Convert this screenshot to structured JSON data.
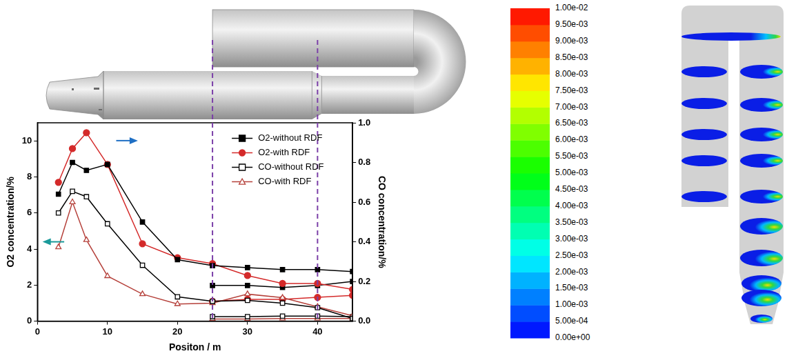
{
  "chart_data": {
    "type": "line",
    "x": [
      3,
      5,
      7,
      10,
      15,
      20,
      25,
      30,
      35,
      40,
      45
    ],
    "xlabel": "Positon / m",
    "ylabel": "O2 concentration/%",
    "y2label": "CO concentration/%",
    "xlim": [
      0,
      45
    ],
    "xticks": [
      0,
      10,
      20,
      30,
      40
    ],
    "ylim": [
      0,
      11
    ],
    "yticks": [
      0,
      2,
      4,
      6,
      8,
      10
    ],
    "y2lim": [
      0,
      1
    ],
    "y2ticks": [
      {
        "value": 0,
        "label": "0.0"
      },
      0.2,
      0.4,
      0.6,
      0.8,
      {
        "value": 1,
        "label": "1.0"
      }
    ],
    "grid": false,
    "legend": "upper right",
    "reference_lines_x": [
      25,
      40
    ],
    "series": [
      {
        "name": "O2-without RDF",
        "color": "#000000",
        "marker": "square",
        "line_style": "solid",
        "axis": "y2",
        "values": [
          0.64,
          0.8,
          0.76,
          0.79,
          0.5,
          0.31,
          0.28,
          0.27,
          0.26,
          0.26,
          0.25
        ]
      },
      {
        "name": "O2-with RDF",
        "color": "#d42a2a",
        "marker": "circle",
        "line_style": "solid",
        "axis": "y2",
        "values": [
          0.7,
          0.87,
          0.95,
          0.79,
          0.39,
          0.32,
          0.29,
          0.23,
          0.19,
          0.19,
          0.16
        ]
      },
      {
        "name": "CO-without RDF",
        "color": "#000000",
        "marker": "open_square",
        "line_style": "solid",
        "axis": "y",
        "values": [
          6.0,
          7.2,
          6.9,
          5.4,
          3.1,
          1.35,
          1.1,
          1.15,
          1.0,
          0.75,
          0.15
        ]
      },
      {
        "name": "CO-with RDF",
        "color": "#b5403a",
        "marker": "open_triangle",
        "line_style": "solid",
        "axis": "y",
        "values": [
          4.1,
          6.6,
          4.5,
          2.5,
          1.5,
          0.95,
          1.0,
          1.5,
          1.3,
          0.8,
          0.3
        ]
      },
      {
        "name": "O2-without RDF",
        "color": "#000000",
        "marker": "square",
        "line_style": "solid",
        "axis": "y2",
        "values": [
          null,
          null,
          null,
          null,
          null,
          null,
          0.18,
          0.18,
          0.17,
          0.18,
          0.2
        ]
      },
      {
        "name": "O2-with RDF",
        "color": "#d42a2a",
        "marker": "circle",
        "line_style": "solid",
        "axis": "y2",
        "values": [
          null,
          null,
          null,
          null,
          null,
          null,
          0.1,
          0.11,
          0.11,
          0.12,
          0.13
        ]
      },
      {
        "name": "CO-without RDF",
        "color": "#000000",
        "marker": "open_square",
        "line_style": "solid",
        "axis": "y",
        "values": [
          null,
          null,
          null,
          null,
          null,
          null,
          0.25,
          0.25,
          0.28,
          0.28,
          0.25
        ]
      },
      {
        "name": "CO-with RDF",
        "color": "#b5403a",
        "marker": "open_triangle",
        "line_style": "solid",
        "axis": "y",
        "values": [
          null,
          null,
          null,
          null,
          null,
          null,
          0.12,
          0.12,
          0.15,
          0.15,
          0.15
        ]
      }
    ]
  },
  "contour_plot": {
    "colorbar": {
      "range": [
        0,
        0.01
      ],
      "ticks": [
        {
          "value": 0,
          "label": "0.00e+00"
        },
        {
          "value": 0.0005,
          "label": "5.00e-04"
        },
        {
          "value": 0.001,
          "label": "1.00e-03"
        },
        {
          "value": 0.0015,
          "label": "1.50e-03"
        },
        {
          "value": 0.002,
          "label": "2.00e-03"
        },
        {
          "value": 0.0025,
          "label": "2.50e-03"
        },
        {
          "value": 0.003,
          "label": "3.00e-03"
        },
        {
          "value": 0.0035,
          "label": "3.50e-03"
        },
        {
          "value": 0.004,
          "label": "4.00e-03"
        },
        {
          "value": 0.0045,
          "label": "4.50e-03"
        },
        {
          "value": 0.005,
          "label": "5.00e-03"
        },
        {
          "value": 0.0055,
          "label": "5.50e-03"
        },
        {
          "value": 0.006,
          "label": "6.00e-03"
        },
        {
          "value": 0.0065,
          "label": "6.50e-03"
        },
        {
          "value": 0.007,
          "label": "7.00e-03"
        },
        {
          "value": 0.0075,
          "label": "7.50e-03"
        },
        {
          "value": 0.008,
          "label": "8.00e-03"
        },
        {
          "value": 0.0085,
          "label": "8.50e-03"
        },
        {
          "value": 0.009,
          "label": "9.00e-03"
        },
        {
          "value": 0.0095,
          "label": "9.50e-03"
        },
        {
          "value": 0.01,
          "label": "1.00e-02"
        }
      ]
    }
  }
}
